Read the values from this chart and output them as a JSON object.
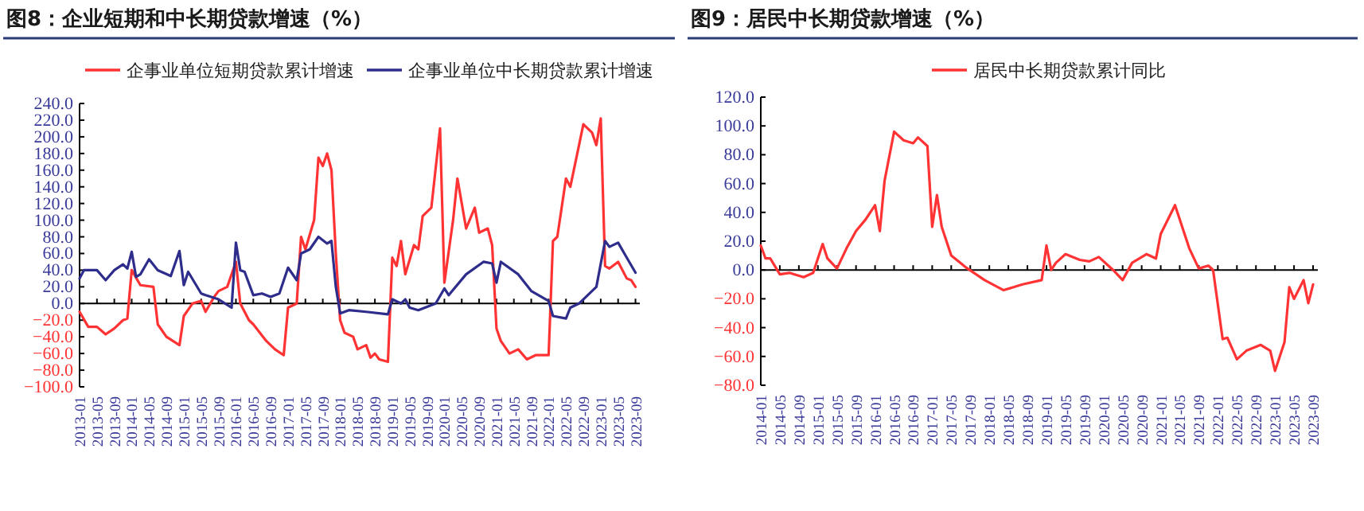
{
  "chart_data": [
    {
      "type": "line",
      "title": "图8：企业短期和中长期贷款增速（%）",
      "legend": "top",
      "xlim": [
        "2013-01",
        "2023-10"
      ],
      "xticks": [
        "2013-01",
        "2013-05",
        "2013-09",
        "2014-01",
        "2014-05",
        "2014-09",
        "2015-01",
        "2015-05",
        "2015-09",
        "2016-01",
        "2016-05",
        "2016-09",
        "2017-01",
        "2017-05",
        "2017-09",
        "2018-01",
        "2018-05",
        "2018-09",
        "2019-01",
        "2019-05",
        "2019-09",
        "2020-01",
        "2020-05",
        "2020-09",
        "2021-01",
        "2021-05",
        "2021-09",
        "2022-01",
        "2022-05",
        "2022-09",
        "2023-01",
        "2023-05",
        "2023-09"
      ],
      "ylim": [
        -100,
        240
      ],
      "yticks": [
        {
          "value": -100,
          "label": "−100.0"
        },
        {
          "value": -80,
          "label": "−80.0"
        },
        {
          "value": -60,
          "label": "−60.0"
        },
        {
          "value": -40,
          "label": "−40.0"
        },
        {
          "value": -20,
          "label": "−20.0"
        },
        {
          "value": 0,
          "label": "0.0"
        },
        {
          "value": 20,
          "label": "20.0"
        },
        {
          "value": 40,
          "label": "40.0"
        },
        {
          "value": 60,
          "label": "60.0"
        },
        {
          "value": 80,
          "label": "80.0"
        },
        {
          "value": 100,
          "label": "100.0"
        },
        {
          "value": 120,
          "label": "120.0"
        },
        {
          "value": 140,
          "label": "140.0"
        },
        {
          "value": 160,
          "label": "160.0"
        },
        {
          "value": 180,
          "label": "180.0"
        },
        {
          "value": 200,
          "label": "200.0"
        },
        {
          "value": 220,
          "label": "220.0"
        },
        {
          "value": 240,
          "label": "240.0"
        }
      ],
      "series": [
        {
          "name": "企事业单位短期贷款累计增速",
          "color": "#ff3333",
          "x": [
            "2013-01",
            "2013-03",
            "2013-05",
            "2013-07",
            "2013-09",
            "2013-11",
            "2013-12",
            "2014-01",
            "2014-03",
            "2014-06",
            "2014-07",
            "2014-09",
            "2014-12",
            "2015-01",
            "2015-03",
            "2015-05",
            "2015-06",
            "2015-08",
            "2015-09",
            "2015-11",
            "2016-01",
            "2016-02",
            "2016-04",
            "2016-05",
            "2016-08",
            "2016-10",
            "2016-12",
            "2017-01",
            "2017-03",
            "2017-04",
            "2017-05",
            "2017-07",
            "2017-08",
            "2017-09",
            "2017-10",
            "2017-11",
            "2017-12",
            "2018-01",
            "2018-02",
            "2018-04",
            "2018-05",
            "2018-07",
            "2018-08",
            "2018-09",
            "2018-10",
            "2018-12",
            "2019-01",
            "2019-02",
            "2019-03",
            "2019-04",
            "2019-06",
            "2019-07",
            "2019-08",
            "2019-10",
            "2019-12",
            "2020-01",
            "2020-03",
            "2020-04",
            "2020-06",
            "2020-08",
            "2020-09",
            "2020-11",
            "2020-12",
            "2021-01",
            "2021-02",
            "2021-04",
            "2021-06",
            "2021-08",
            "2021-10",
            "2022-01",
            "2022-02",
            "2022-03",
            "2022-05",
            "2022-06",
            "2022-08",
            "2022-09",
            "2022-11",
            "2022-12",
            "2023-01",
            "2023-02",
            "2023-03",
            "2023-05",
            "2023-07",
            "2023-08",
            "2023-09"
          ],
          "values": [
            -10,
            -28,
            -28,
            -37,
            -30,
            -20,
            -18,
            40,
            22,
            20,
            -25,
            -40,
            -50,
            -15,
            0,
            3,
            -10,
            8,
            15,
            20,
            50,
            0,
            -20,
            -25,
            -45,
            -55,
            -62,
            -5,
            0,
            80,
            65,
            100,
            175,
            165,
            180,
            160,
            60,
            -20,
            -35,
            -40,
            -55,
            -50,
            -65,
            -60,
            -67,
            -70,
            55,
            45,
            75,
            35,
            70,
            65,
            105,
            115,
            210,
            25,
            100,
            150,
            90,
            115,
            85,
            90,
            70,
            -30,
            -45,
            -60,
            -55,
            -67,
            -62,
            -62,
            75,
            80,
            150,
            140,
            190,
            215,
            205,
            190,
            222,
            45,
            42,
            50,
            30,
            28,
            20
          ]
        },
        {
          "name": "企事业单位中长期贷款累计增速",
          "color": "#2e2d8c",
          "x": [
            "2013-01",
            "2013-02",
            "2013-05",
            "2013-07",
            "2013-09",
            "2013-11",
            "2013-12",
            "2014-01",
            "2014-02",
            "2014-03",
            "2014-05",
            "2014-07",
            "2014-10",
            "2014-12",
            "2015-01",
            "2015-02",
            "2015-05",
            "2015-06",
            "2015-09",
            "2015-12",
            "2016-01",
            "2016-02",
            "2016-03",
            "2016-05",
            "2016-07",
            "2016-09",
            "2016-11",
            "2017-01",
            "2017-03",
            "2017-04",
            "2017-06",
            "2017-08",
            "2017-10",
            "2017-11",
            "2017-12",
            "2018-01",
            "2018-03",
            "2018-07",
            "2018-12",
            "2019-01",
            "2019-03",
            "2019-04",
            "2019-05",
            "2019-07",
            "2019-11",
            "2020-01",
            "2020-02",
            "2020-06",
            "2020-10",
            "2020-12",
            "2021-01",
            "2021-02",
            "2021-06",
            "2021-09",
            "2022-01",
            "2022-02",
            "2022-05",
            "2022-06",
            "2022-08",
            "2022-11",
            "2022-12",
            "2023-02",
            "2023-03",
            "2023-05",
            "2023-07",
            "2023-09"
          ],
          "values": [
            30,
            40,
            40,
            28,
            40,
            47,
            42,
            62,
            32,
            35,
            53,
            40,
            33,
            63,
            22,
            38,
            12,
            10,
            5,
            -5,
            73,
            40,
            38,
            10,
            12,
            8,
            12,
            43,
            28,
            60,
            65,
            80,
            72,
            75,
            20,
            -12,
            -8,
            -10,
            -13,
            5,
            0,
            5,
            -5,
            -8,
            0,
            18,
            10,
            35,
            50,
            48,
            25,
            50,
            35,
            15,
            3,
            -15,
            -18,
            -5,
            0,
            15,
            20,
            75,
            68,
            73,
            55,
            37
          ]
        }
      ]
    },
    {
      "type": "line",
      "title": "图9：居民中长期贷款增速（%）",
      "legend": "top",
      "xlim": [
        "2014-01",
        "2023-10"
      ],
      "xticks": [
        "2014-01",
        "2014-05",
        "2014-09",
        "2015-01",
        "2015-05",
        "2015-09",
        "2016-01",
        "2016-05",
        "2016-09",
        "2017-01",
        "2017-05",
        "2017-09",
        "2018-01",
        "2018-05",
        "2018-09",
        "2019-01",
        "2019-05",
        "2019-09",
        "2020-01",
        "2020-05",
        "2020-09",
        "2021-01",
        "2021-05",
        "2021-09",
        "2022-01",
        "2022-05",
        "2022-09",
        "2023-01",
        "2023-05",
        "2023-09"
      ],
      "ylim": [
        -80,
        120
      ],
      "yticks": [
        {
          "value": -80,
          "label": "−80.0"
        },
        {
          "value": -60,
          "label": "−60.0"
        },
        {
          "value": -40,
          "label": "−40.0"
        },
        {
          "value": -20,
          "label": "−20.0"
        },
        {
          "value": 0,
          "label": "0.0"
        },
        {
          "value": 20,
          "label": "20.0"
        },
        {
          "value": 40,
          "label": "40.0"
        },
        {
          "value": 60,
          "label": "60.0"
        },
        {
          "value": 80,
          "label": "80.0"
        },
        {
          "value": 100,
          "label": "100.0"
        },
        {
          "value": 120,
          "label": "120.0"
        }
      ],
      "series": [
        {
          "name": "居民中长期贷款累计同比",
          "color": "#ff3333",
          "x": [
            "2014-01",
            "2014-02",
            "2014-03",
            "2014-05",
            "2014-07",
            "2014-10",
            "2014-12",
            "2015-02",
            "2015-03",
            "2015-05",
            "2015-07",
            "2015-09",
            "2015-11",
            "2016-01",
            "2016-02",
            "2016-03",
            "2016-05",
            "2016-07",
            "2016-09",
            "2016-10",
            "2016-12",
            "2017-01",
            "2017-02",
            "2017-03",
            "2017-05",
            "2017-08",
            "2017-12",
            "2018-04",
            "2018-08",
            "2018-12",
            "2019-01",
            "2019-02",
            "2019-03",
            "2019-05",
            "2019-08",
            "2019-10",
            "2019-12",
            "2020-03",
            "2020-05",
            "2020-07",
            "2020-10",
            "2020-12",
            "2021-01",
            "2021-04",
            "2021-07",
            "2021-09",
            "2021-11",
            "2021-12",
            "2022-02",
            "2022-03",
            "2022-05",
            "2022-07",
            "2022-10",
            "2022-12",
            "2023-01",
            "2023-03",
            "2023-04",
            "2023-05",
            "2023-07",
            "2023-08",
            "2023-09"
          ],
          "values": [
            17,
            8,
            8,
            -3,
            -2,
            -5,
            -2,
            18,
            8,
            1,
            15,
            27,
            35,
            45,
            27,
            62,
            96,
            90,
            88,
            92,
            86,
            30,
            52,
            30,
            10,
            2,
            -7,
            -14,
            -10,
            -7,
            17,
            0,
            5,
            11,
            7,
            6,
            9,
            0,
            -7,
            5,
            11,
            8,
            25,
            45,
            15,
            1,
            3,
            0,
            -48,
            -47,
            -62,
            -56,
            -52,
            -56,
            -70,
            -50,
            -12,
            -20,
            -7,
            -23,
            -10
          ]
        }
      ]
    }
  ]
}
